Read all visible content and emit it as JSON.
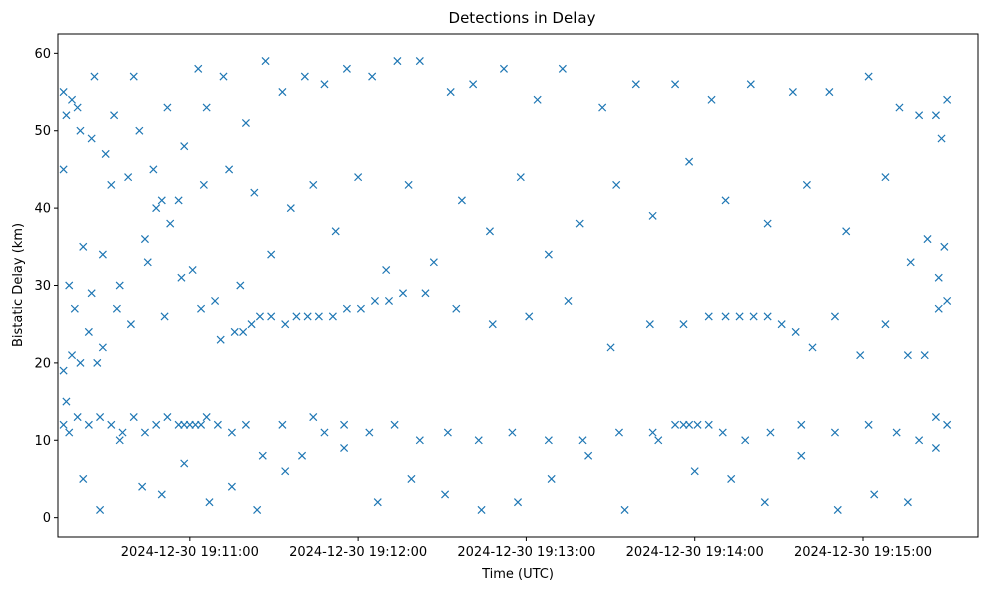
{
  "chart_data": {
    "type": "scatter",
    "title": "Detections in Delay",
    "xlabel": "Time (UTC)",
    "ylabel": "Bistatic Delay (km)",
    "x_tick_labels": [
      "2024-12-30 19:11:00",
      "2024-12-30 19:12:00",
      "2024-12-30 19:13:00",
      "2024-12-30 19:14:00",
      "2024-12-30 19:15:00"
    ],
    "y_ticks": [
      0,
      10,
      20,
      30,
      40,
      50,
      60
    ],
    "x_range": [
      "2024-12-30 19:10:13",
      "2024-12-30 19:15:41"
    ],
    "y_range": [
      -2.5,
      62.5
    ],
    "marker": "x",
    "grid": false,
    "colors": {
      "series": "#1f77b4"
    },
    "series": [
      {
        "x": [
          "2024-12-30 19:10:15",
          "2024-12-30 19:10:16",
          "2024-12-30 19:10:18",
          "2024-12-30 19:10:20",
          "2024-12-30 19:10:21",
          "2024-12-30 19:10:25",
          "2024-12-30 19:10:26",
          "2024-12-30 19:10:30",
          "2024-12-30 19:10:33",
          "2024-12-30 19:10:40",
          "2024-12-30 19:10:42",
          "2024-12-30 19:10:48",
          "2024-12-30 19:10:52",
          "2024-12-30 19:10:56",
          "2024-12-30 19:11:03",
          "2024-12-30 19:11:06",
          "2024-12-30 19:11:12",
          "2024-12-30 19:11:20",
          "2024-12-30 19:11:27",
          "2024-12-30 19:11:33",
          "2024-12-30 19:11:41",
          "2024-12-30 19:11:48",
          "2024-12-30 19:11:56",
          "2024-12-30 19:12:05",
          "2024-12-30 19:12:14",
          "2024-12-30 19:12:22",
          "2024-12-30 19:12:33",
          "2024-12-30 19:12:41",
          "2024-12-30 19:12:52",
          "2024-12-30 19:13:04",
          "2024-12-30 19:13:13",
          "2024-12-30 19:13:27",
          "2024-12-30 19:13:39",
          "2024-12-30 19:13:53",
          "2024-12-30 19:14:06",
          "2024-12-30 19:14:20",
          "2024-12-30 19:14:35",
          "2024-12-30 19:14:48",
          "2024-12-30 19:15:02",
          "2024-12-30 19:15:13",
          "2024-12-30 19:15:20",
          "2024-12-30 19:15:26",
          "2024-12-30 19:15:28",
          "2024-12-30 19:15:30",
          "2024-12-30 19:10:15",
          "2024-12-30 19:10:17",
          "2024-12-30 19:10:19",
          "2024-12-30 19:10:22",
          "2024-12-30 19:10:24",
          "2024-12-30 19:10:27",
          "2024-12-30 19:10:29",
          "2024-12-30 19:10:32",
          "2024-12-30 19:10:35",
          "2024-12-30 19:10:38",
          "2024-12-30 19:10:44",
          "2024-12-30 19:10:47",
          "2024-12-30 19:10:50",
          "2024-12-30 19:10:53",
          "2024-12-30 19:10:58",
          "2024-12-30 19:11:01",
          "2024-12-30 19:11:05",
          "2024-12-30 19:11:09",
          "2024-12-30 19:11:14",
          "2024-12-30 19:11:18",
          "2024-12-30 19:11:23",
          "2024-12-30 19:11:29",
          "2024-12-30 19:11:36",
          "2024-12-30 19:11:44",
          "2024-12-30 19:11:52",
          "2024-12-30 19:12:00",
          "2024-12-30 19:12:10",
          "2024-12-30 19:12:18",
          "2024-12-30 19:12:27",
          "2024-12-30 19:12:37",
          "2024-12-30 19:12:47",
          "2024-12-30 19:12:58",
          "2024-12-30 19:13:08",
          "2024-12-30 19:13:19",
          "2024-12-30 19:13:32",
          "2024-12-30 19:13:45",
          "2024-12-30 19:13:58",
          "2024-12-30 19:14:11",
          "2024-12-30 19:14:26",
          "2024-12-30 19:14:40",
          "2024-12-30 19:14:54",
          "2024-12-30 19:15:08",
          "2024-12-30 19:15:17",
          "2024-12-30 19:15:23",
          "2024-12-30 19:15:27",
          "2024-12-30 19:15:29"
        ],
        "y": [
          55,
          52,
          54,
          53,
          50,
          49,
          57,
          47,
          52,
          57,
          50,
          40,
          53,
          41,
          58,
          53,
          57,
          51,
          59,
          55,
          57,
          56,
          58,
          57,
          59,
          59,
          55,
          56,
          58,
          54,
          58,
          53,
          56,
          56,
          54,
          56,
          55,
          55,
          57,
          53,
          52,
          52,
          49,
          54,
          45,
          30,
          27,
          35,
          24,
          20,
          22,
          43,
          30,
          44,
          36,
          45,
          41,
          38,
          48,
          32,
          43,
          28,
          45,
          30,
          42,
          34,
          40,
          43,
          37,
          44,
          32,
          43,
          33,
          41,
          37,
          44,
          34,
          38,
          43,
          39,
          46,
          41,
          38,
          43,
          37,
          44,
          33,
          36,
          31,
          35
        ]
      },
      {
        "x": [
          "2024-12-30 19:10:15",
          "2024-12-30 19:10:17",
          "2024-12-30 19:10:20",
          "2024-12-30 19:10:24",
          "2024-12-30 19:10:28",
          "2024-12-30 19:10:32",
          "2024-12-30 19:10:36",
          "2024-12-30 19:10:40",
          "2024-12-30 19:10:44",
          "2024-12-30 19:10:48",
          "2024-12-30 19:10:52",
          "2024-12-30 19:10:56",
          "2024-12-30 19:10:58",
          "2024-12-30 19:11:00",
          "2024-12-30 19:11:02",
          "2024-12-30 19:11:04",
          "2024-12-30 19:11:06",
          "2024-12-30 19:11:10",
          "2024-12-30 19:11:15",
          "2024-12-30 19:11:20",
          "2024-12-30 19:11:26",
          "2024-12-30 19:11:33",
          "2024-12-30 19:11:40",
          "2024-12-30 19:11:48",
          "2024-12-30 19:11:55",
          "2024-12-30 19:12:04",
          "2024-12-30 19:12:13",
          "2024-12-30 19:12:22",
          "2024-12-30 19:12:32",
          "2024-12-30 19:12:43",
          "2024-12-30 19:12:55",
          "2024-12-30 19:13:08",
          "2024-12-30 19:13:20",
          "2024-12-30 19:13:33",
          "2024-12-30 19:13:45",
          "2024-12-30 19:13:53",
          "2024-12-30 19:13:56",
          "2024-12-30 19:13:58",
          "2024-12-30 19:14:01",
          "2024-12-30 19:14:05",
          "2024-12-30 19:14:10",
          "2024-12-30 19:14:18",
          "2024-12-30 19:14:27",
          "2024-12-30 19:14:38",
          "2024-12-30 19:14:50",
          "2024-12-30 19:15:02",
          "2024-12-30 19:15:12",
          "2024-12-30 19:15:20",
          "2024-12-30 19:15:26",
          "2024-12-30 19:15:30"
        ],
        "y": [
          12,
          11,
          13,
          12,
          13,
          12,
          11,
          13,
          11,
          12,
          13,
          12,
          12,
          12,
          12,
          12,
          13,
          12,
          11,
          12,
          8,
          12,
          8,
          11,
          12,
          11,
          12,
          10,
          11,
          10,
          11,
          10,
          10,
          11,
          11,
          12,
          12,
          12,
          12,
          12,
          11,
          10,
          11,
          12,
          11,
          12,
          11,
          10,
          13,
          12
        ]
      },
      {
        "x": [
          "2024-12-30 19:10:15",
          "2024-12-30 19:10:18",
          "2024-12-30 19:10:21",
          "2024-12-30 19:10:25",
          "2024-12-30 19:10:29",
          "2024-12-30 19:10:34",
          "2024-12-30 19:10:39",
          "2024-12-30 19:10:45",
          "2024-12-30 19:10:51",
          "2024-12-30 19:10:57",
          "2024-12-30 19:11:04",
          "2024-12-30 19:11:11",
          "2024-12-30 19:11:16",
          "2024-12-30 19:11:19",
          "2024-12-30 19:11:22",
          "2024-12-30 19:11:25",
          "2024-12-30 19:11:29",
          "2024-12-30 19:11:34",
          "2024-12-30 19:11:38",
          "2024-12-30 19:11:42",
          "2024-12-30 19:11:46",
          "2024-12-30 19:11:51",
          "2024-12-30 19:11:56",
          "2024-12-30 19:12:01",
          "2024-12-30 19:12:06",
          "2024-12-30 19:12:11",
          "2024-12-30 19:12:16",
          "2024-12-30 19:12:24",
          "2024-12-30 19:12:35",
          "2024-12-30 19:12:48",
          "2024-12-30 19:13:01",
          "2024-12-30 19:13:15",
          "2024-12-30 19:13:30",
          "2024-12-30 19:13:44",
          "2024-12-30 19:13:56",
          "2024-12-30 19:14:05",
          "2024-12-30 19:14:11",
          "2024-12-30 19:14:16",
          "2024-12-30 19:14:21",
          "2024-12-30 19:14:26",
          "2024-12-30 19:14:31",
          "2024-12-30 19:14:36",
          "2024-12-30 19:14:42",
          "2024-12-30 19:14:50",
          "2024-12-30 19:14:59",
          "2024-12-30 19:15:08",
          "2024-12-30 19:15:16",
          "2024-12-30 19:15:22",
          "2024-12-30 19:15:27",
          "2024-12-30 19:15:30"
        ],
        "y": [
          19,
          21,
          20,
          29,
          34,
          27,
          25,
          33,
          26,
          31,
          27,
          23,
          24,
          24,
          25,
          26,
          26,
          25,
          26,
          26,
          26,
          26,
          27,
          27,
          28,
          28,
          29,
          29,
          27,
          25,
          26,
          28,
          22,
          25,
          25,
          26,
          26,
          26,
          26,
          26,
          25,
          24,
          22,
          26,
          21,
          25,
          21,
          21,
          27,
          28
        ]
      },
      {
        "x": [
          "2024-12-30 19:10:16",
          "2024-12-30 19:10:22",
          "2024-12-30 19:10:28",
          "2024-12-30 19:10:35",
          "2024-12-30 19:10:43",
          "2024-12-30 19:10:50",
          "2024-12-30 19:10:58",
          "2024-12-30 19:11:07",
          "2024-12-30 19:11:15",
          "2024-12-30 19:11:24",
          "2024-12-30 19:11:34",
          "2024-12-30 19:11:44",
          "2024-12-30 19:11:55",
          "2024-12-30 19:12:07",
          "2024-12-30 19:12:19",
          "2024-12-30 19:12:31",
          "2024-12-30 19:12:44",
          "2024-12-30 19:12:57",
          "2024-12-30 19:13:09",
          "2024-12-30 19:13:22",
          "2024-12-30 19:13:35",
          "2024-12-30 19:13:47",
          "2024-12-30 19:14:00",
          "2024-12-30 19:14:13",
          "2024-12-30 19:14:25",
          "2024-12-30 19:14:38",
          "2024-12-30 19:14:51",
          "2024-12-30 19:15:04",
          "2024-12-30 19:15:16",
          "2024-12-30 19:15:26"
        ],
        "y": [
          15,
          5,
          1,
          10,
          4,
          3,
          7,
          2,
          4,
          1,
          6,
          13,
          9,
          2,
          5,
          3,
          1,
          2,
          5,
          8,
          1,
          10,
          6,
          5,
          2,
          8,
          1,
          3,
          2,
          9
        ]
      }
    ]
  }
}
